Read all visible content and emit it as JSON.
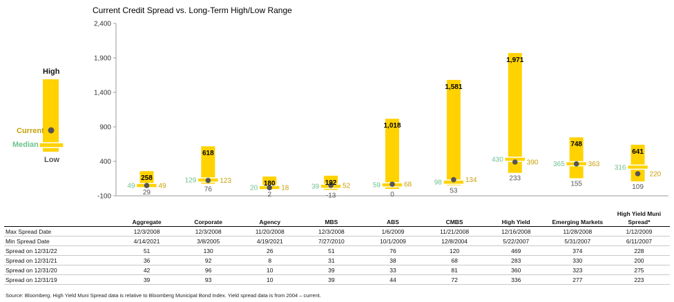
{
  "chart_data": {
    "type": "range-bar",
    "title": "Current Credit Spread vs. Long-Term High/Low Range",
    "ylim": [
      -100,
      2400
    ],
    "yticks": [
      "2,400",
      "1,900",
      "1,400",
      "900",
      "400",
      "-100"
    ],
    "ytick_values": [
      2400,
      1900,
      1400,
      900,
      400,
      -100
    ],
    "categories": [
      "Aggregate",
      "Corporate",
      "Agency",
      "MBS",
      "ABS",
      "CMBS",
      "High Yield",
      "Emerging Markets",
      "High Yield Muni Spread*"
    ],
    "high": [
      258,
      618,
      180,
      192,
      1018,
      1581,
      1971,
      748,
      641
    ],
    "high_labels": [
      "258",
      "618",
      "180",
      "192",
      "1,018",
      "1,581",
      "1,971",
      "748",
      "641"
    ],
    "low": [
      29,
      76,
      2,
      -13,
      0,
      53,
      233,
      155,
      109
    ],
    "low_labels": [
      "29",
      "76",
      "2",
      "-13",
      "0",
      "53",
      "233",
      "155",
      "109"
    ],
    "median": [
      49,
      129,
      20,
      39,
      59,
      98,
      430,
      365,
      316
    ],
    "median_labels": [
      "49",
      "129",
      "20",
      "39",
      "59",
      "98",
      "430",
      "365",
      "316"
    ],
    "current": [
      49,
      123,
      18,
      52,
      68,
      134,
      390,
      363,
      220
    ],
    "current_labels": [
      "49",
      "123",
      "18",
      "52",
      "68",
      "134",
      "390",
      "363",
      "220"
    ],
    "colors": {
      "bar": "#FFD200",
      "median": "#6CC28E",
      "current": "#C7A008",
      "dot": "#555555",
      "low_text": "#555555"
    }
  },
  "legend": {
    "high": "High",
    "current": "Current",
    "median": "Median",
    "low": "Low"
  },
  "table": {
    "columns": [
      "Aggregate",
      "Corporate",
      "Agency",
      "MBS",
      "ABS",
      "CMBS",
      "High Yield",
      "Emerging Markets",
      "High Yield Muni Spread*"
    ],
    "rows": [
      {
        "label": "Max Spread Date",
        "values": [
          "12/3/2008",
          "12/3/2008",
          "11/20/2008",
          "12/3/2008",
          "1/6/2009",
          "11/21/2008",
          "12/16/2008",
          "11/28/2008",
          "1/12/2009"
        ]
      },
      {
        "label": "Min Spread Date",
        "values": [
          "4/14/2021",
          "3/8/2005",
          "4/19/2021",
          "7/27/2010",
          "10/1/2009",
          "12/8/2004",
          "5/22/2007",
          "5/31/2007",
          "6/11/2007"
        ]
      },
      {
        "label": "Spread on 12/31/22",
        "values": [
          "51",
          "130",
          "26",
          "51",
          "76",
          "120",
          "469",
          "374",
          "228"
        ]
      },
      {
        "label": "Spread on 12/31/21",
        "values": [
          "36",
          "92",
          "8",
          "31",
          "38",
          "68",
          "283",
          "330",
          "200"
        ]
      },
      {
        "label": "Spread on 12/31/20",
        "values": [
          "42",
          "96",
          "10",
          "39",
          "33",
          "81",
          "360",
          "323",
          "275"
        ]
      },
      {
        "label": "Spread on 12/31/19",
        "values": [
          "39",
          "93",
          "10",
          "39",
          "44",
          "72",
          "336",
          "277",
          "223"
        ]
      }
    ]
  },
  "source": "Source: Bloomberg. High Yield Muni Spread data is relative to Bloomberg Municipal Bond Index. Yield spread data is from 2004 – current."
}
